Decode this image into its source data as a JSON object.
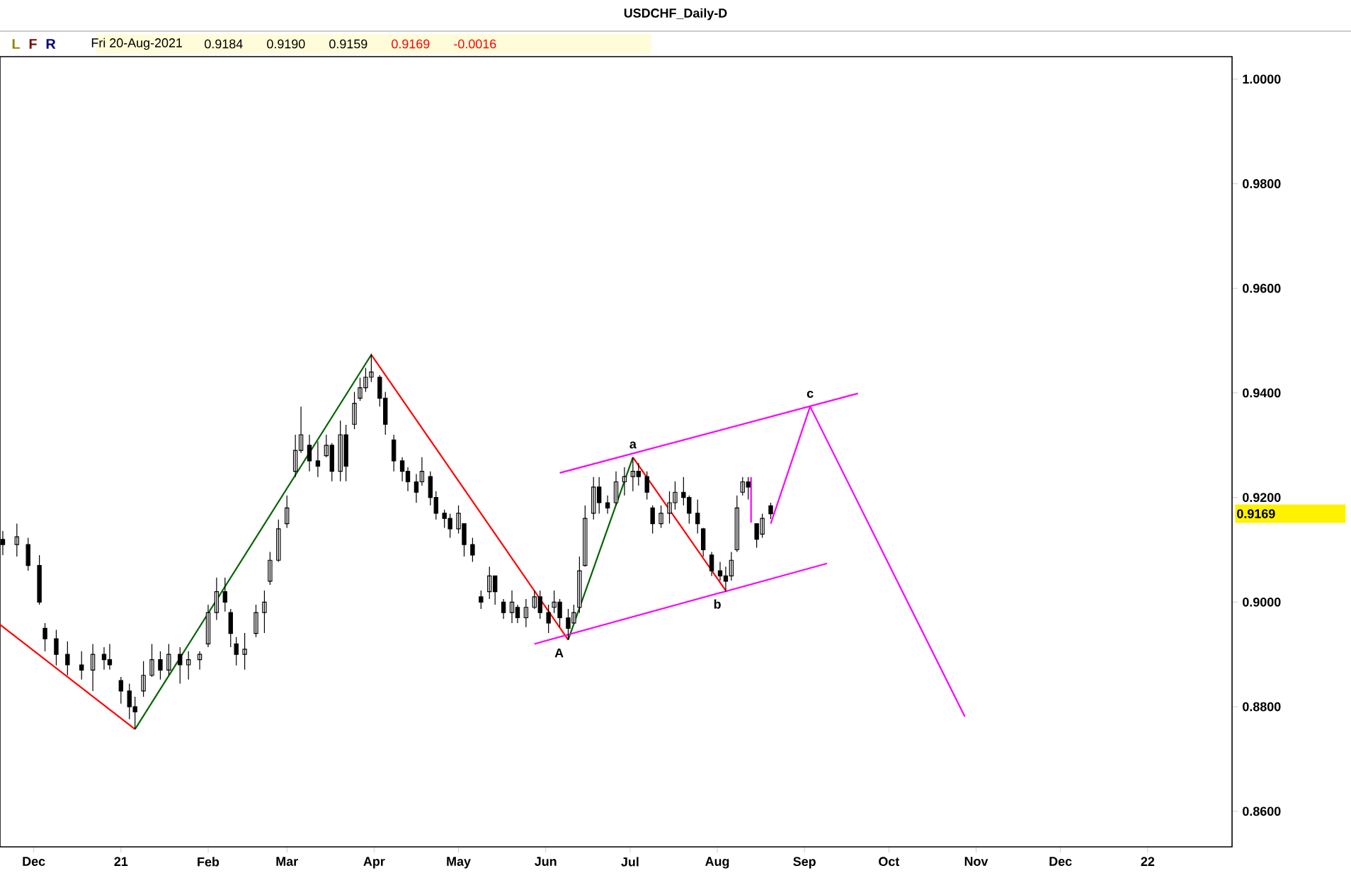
{
  "chart_data": {
    "type": "candlestick",
    "title": "USDCHF_Daily-D",
    "annotations": [
      "L",
      "F",
      "R",
      "Fri 20-Aug-2021",
      "0.9184",
      "0.9190",
      "0.9159",
      "0.9169",
      "-0.0016",
      "0.9169",
      {
        "text": "a",
        "x": "2021-07-02",
        "y": 0.9277
      },
      {
        "text": "b",
        "x": "2021-08-04",
        "y": 0.9022
      },
      {
        "text": "c",
        "x": "2021-09-03",
        "y": 0.9374
      },
      {
        "text": "A",
        "x": "2021-06-09",
        "y": 0.8928
      }
    ],
    "x": [
      "2020-11-20",
      "2020-11-25",
      "2020-11-29",
      "2020-12-03",
      "2020-12-05",
      "2020-12-09",
      "2020-12-13",
      "2020-12-18",
      "2020-12-22",
      "2020-12-26",
      "2020-12-28",
      "2021-01-01",
      "2021-01-04",
      "2021-01-06",
      "2021-01-09",
      "2021-01-12",
      "2021-01-15",
      "2021-01-18",
      "2021-01-22",
      "2021-01-25",
      "2021-01-29",
      "2021-02-01",
      "2021-02-04",
      "2021-02-07",
      "2021-02-09",
      "2021-02-11",
      "2021-02-14",
      "2021-02-18",
      "2021-02-21",
      "2021-02-23",
      "2021-02-26",
      "2021-03-01",
      "2021-03-04",
      "2021-03-06",
      "2021-03-09",
      "2021-03-12",
      "2021-03-15",
      "2021-03-17",
      "2021-03-20",
      "2021-03-22",
      "2021-03-25",
      "2021-03-27",
      "2021-03-29",
      "2021-03-31",
      "2021-04-03",
      "2021-04-05",
      "2021-04-08",
      "2021-04-11",
      "2021-04-13",
      "2021-04-16",
      "2021-04-18",
      "2021-04-21",
      "2021-04-23",
      "2021-04-26",
      "2021-04-28",
      "2021-05-01",
      "2021-05-03",
      "2021-05-06",
      "2021-05-09",
      "2021-05-12",
      "2021-05-14",
      "2021-05-17",
      "2021-05-20",
      "2021-05-22",
      "2021-05-25",
      "2021-05-28",
      "2021-05-30",
      "2021-06-02",
      "2021-06-04",
      "2021-06-06",
      "2021-06-09",
      "2021-06-11",
      "2021-06-13",
      "2021-06-15",
      "2021-06-18",
      "2021-06-20",
      "2021-06-23",
      "2021-06-26",
      "2021-06-29",
      "2021-07-02",
      "2021-07-04",
      "2021-07-07",
      "2021-07-09",
      "2021-07-12",
      "2021-07-15",
      "2021-07-17",
      "2021-07-20",
      "2021-07-22",
      "2021-07-25",
      "2021-07-27",
      "2021-07-30",
      "2021-08-02",
      "2021-08-04",
      "2021-08-06",
      "2021-08-08",
      "2021-08-10",
      "2021-08-12",
      "2021-08-15",
      "2021-08-17",
      "2021-08-20"
    ],
    "ohlc": [
      [
        0.912,
        0.9136,
        0.909,
        0.911
      ],
      [
        0.911,
        0.915,
        0.9087,
        0.9125
      ],
      [
        0.911,
        0.9123,
        0.906,
        0.907
      ],
      [
        0.907,
        0.909,
        0.8995,
        0.9
      ],
      [
        0.895,
        0.896,
        0.8906,
        0.893
      ],
      [
        0.893,
        0.8947,
        0.8879,
        0.89
      ],
      [
        0.89,
        0.8925,
        0.886,
        0.888
      ],
      [
        0.888,
        0.8906,
        0.8852,
        0.887
      ],
      [
        0.887,
        0.892,
        0.883,
        0.89
      ],
      [
        0.89,
        0.8914,
        0.8871,
        0.889
      ],
      [
        0.889,
        0.892,
        0.8871,
        0.888
      ],
      [
        0.885,
        0.8857,
        0.8806,
        0.883
      ],
      [
        0.883,
        0.8844,
        0.8776,
        0.88
      ],
      [
        0.88,
        0.8819,
        0.8757,
        0.879
      ],
      [
        0.883,
        0.8887,
        0.8819,
        0.886
      ],
      [
        0.886,
        0.892,
        0.8857,
        0.889
      ],
      [
        0.889,
        0.8906,
        0.8852,
        0.887
      ],
      [
        0.887,
        0.892,
        0.886,
        0.89
      ],
      [
        0.89,
        0.8914,
        0.8844,
        0.888
      ],
      [
        0.888,
        0.8906,
        0.8852,
        0.889
      ],
      [
        0.889,
        0.8906,
        0.8871,
        0.89
      ],
      [
        0.892,
        0.8995,
        0.8914,
        0.898
      ],
      [
        0.898,
        0.9047,
        0.8966,
        0.902
      ],
      [
        0.902,
        0.9047,
        0.8982,
        0.9
      ],
      [
        0.898,
        0.8987,
        0.8914,
        0.894
      ],
      [
        0.892,
        0.8933,
        0.8879,
        0.89
      ],
      [
        0.89,
        0.8941,
        0.8871,
        0.891
      ],
      [
        0.894,
        0.8995,
        0.8933,
        0.898
      ],
      [
        0.898,
        0.9022,
        0.8941,
        0.9
      ],
      [
        0.904,
        0.9096,
        0.9033,
        0.908
      ],
      [
        0.908,
        0.9158,
        0.9077,
        0.914
      ],
      [
        0.915,
        0.9204,
        0.9142,
        0.918
      ],
      [
        0.925,
        0.932,
        0.9239,
        0.929
      ],
      [
        0.929,
        0.9374,
        0.9285,
        0.932
      ],
      [
        0.93,
        0.932,
        0.925,
        0.927
      ],
      [
        0.927,
        0.9307,
        0.9239,
        0.926
      ],
      [
        0.928,
        0.932,
        0.9277,
        0.93
      ],
      [
        0.93,
        0.9304,
        0.9231,
        0.925
      ],
      [
        0.925,
        0.9347,
        0.9231,
        0.932
      ],
      [
        0.932,
        0.9339,
        0.9231,
        0.926
      ],
      [
        0.934,
        0.9402,
        0.9331,
        0.938
      ],
      [
        0.939,
        0.9429,
        0.9385,
        0.941
      ],
      [
        0.941,
        0.9448,
        0.9402,
        0.943
      ],
      [
        0.943,
        0.9475,
        0.9421,
        0.944
      ],
      [
        0.943,
        0.9434,
        0.9374,
        0.939
      ],
      [
        0.939,
        0.9402,
        0.932,
        0.934
      ],
      [
        0.931,
        0.932,
        0.925,
        0.927
      ],
      [
        0.927,
        0.9277,
        0.9231,
        0.925
      ],
      [
        0.925,
        0.9258,
        0.9212,
        0.923
      ],
      [
        0.923,
        0.9245,
        0.919,
        0.921
      ],
      [
        0.923,
        0.9277,
        0.9223,
        0.925
      ],
      [
        0.924,
        0.925,
        0.9185,
        0.92
      ],
      [
        0.92,
        0.9212,
        0.9158,
        0.917
      ],
      [
        0.917,
        0.9177,
        0.9142,
        0.916
      ],
      [
        0.916,
        0.9169,
        0.9123,
        0.914
      ],
      [
        0.914,
        0.9185,
        0.9131,
        0.917
      ],
      [
        0.915,
        0.915,
        0.9087,
        0.911
      ],
      [
        0.911,
        0.9123,
        0.9077,
        0.909
      ],
      [
        0.901,
        0.9022,
        0.8987,
        0.9
      ],
      [
        0.902,
        0.9068,
        0.9006,
        0.905
      ],
      [
        0.905,
        0.905,
        0.8995,
        0.902
      ],
      [
        0.9,
        0.9006,
        0.8968,
        0.898
      ],
      [
        0.898,
        0.9022,
        0.896,
        0.9
      ],
      [
        0.899,
        0.8995,
        0.896,
        0.897
      ],
      [
        0.897,
        0.9006,
        0.8952,
        0.899
      ],
      [
        0.899,
        0.9022,
        0.8987,
        0.901
      ],
      [
        0.901,
        0.9022,
        0.8968,
        0.898
      ],
      [
        0.898,
        0.8995,
        0.8941,
        0.896
      ],
      [
        0.899,
        0.9022,
        0.8979,
        0.9
      ],
      [
        0.9,
        0.9006,
        0.8952,
        0.897
      ],
      [
        0.897,
        0.8987,
        0.8928,
        0.895
      ],
      [
        0.896,
        0.8995,
        0.896,
        0.898
      ],
      [
        0.899,
        0.9087,
        0.8979,
        0.906
      ],
      [
        0.907,
        0.9185,
        0.9068,
        0.916
      ],
      [
        0.917,
        0.9239,
        0.9158,
        0.922
      ],
      [
        0.922,
        0.9239,
        0.9169,
        0.919
      ],
      [
        0.919,
        0.9204,
        0.9169,
        0.918
      ],
      [
        0.919,
        0.925,
        0.9185,
        0.923
      ],
      [
        0.923,
        0.9258,
        0.9204,
        0.924
      ],
      [
        0.924,
        0.9277,
        0.9212,
        0.925
      ],
      [
        0.925,
        0.9266,
        0.9223,
        0.924
      ],
      [
        0.924,
        0.925,
        0.9196,
        0.921
      ],
      [
        0.918,
        0.9185,
        0.9131,
        0.915
      ],
      [
        0.915,
        0.9185,
        0.9142,
        0.917
      ],
      [
        0.917,
        0.9212,
        0.915,
        0.919
      ],
      [
        0.919,
        0.9231,
        0.9177,
        0.921
      ],
      [
        0.921,
        0.9239,
        0.9185,
        0.92
      ],
      [
        0.92,
        0.9204,
        0.915,
        0.917
      ],
      [
        0.917,
        0.9196,
        0.9131,
        0.915
      ],
      [
        0.914,
        0.9142,
        0.9087,
        0.91
      ],
      [
        0.909,
        0.9096,
        0.905,
        0.906
      ],
      [
        0.906,
        0.9077,
        0.9041,
        0.905
      ],
      [
        0.905,
        0.9068,
        0.902,
        0.904
      ],
      [
        0.905,
        0.9096,
        0.9041,
        0.908
      ],
      [
        0.91,
        0.9204,
        0.9096,
        0.918
      ],
      [
        0.921,
        0.9239,
        0.9204,
        0.923
      ],
      [
        0.923,
        0.9239,
        0.9196,
        0.922
      ],
      [
        0.915,
        0.915,
        0.9104,
        0.912
      ],
      [
        0.913,
        0.9169,
        0.9123,
        0.916
      ],
      [
        0.9184,
        0.919,
        0.9159,
        0.9169
      ]
    ],
    "series": [
      {
        "type": "line",
        "color": "#ff0000",
        "x": [
          "2020-11-19",
          "2021-01-06"
        ],
        "values": [
          0.8957,
          0.8757
        ]
      },
      {
        "type": "line",
        "color": "#006400",
        "x": [
          "2021-01-06",
          "2021-03-31"
        ],
        "values": [
          0.8757,
          0.9473
        ]
      },
      {
        "type": "line",
        "color": "#ff0000",
        "x": [
          "2021-03-31",
          "2021-06-09"
        ],
        "values": [
          0.9473,
          0.8928
        ]
      },
      {
        "type": "line",
        "color": "#006400",
        "x": [
          "2021-06-09",
          "2021-07-02"
        ],
        "values": [
          0.8928,
          0.9277
        ]
      },
      {
        "type": "line",
        "color": "#ff0000",
        "x": [
          "2021-07-02",
          "2021-08-04"
        ],
        "values": [
          0.9277,
          0.9022
        ]
      },
      {
        "type": "line",
        "color": "#ff00ff",
        "x": [
          "2021-06-06",
          "2021-09-20"
        ],
        "values": [
          0.9247,
          0.9399
        ]
      },
      {
        "type": "line",
        "color": "#ff00ff",
        "x": [
          "2021-05-28",
          "2021-09-09"
        ],
        "values": [
          0.892,
          0.9074
        ]
      },
      {
        "type": "line",
        "color": "#ff00ff",
        "x": [
          "2021-08-20",
          "2021-09-03",
          "2021-10-28"
        ],
        "values": [
          0.915,
          0.9374,
          0.8781
        ]
      },
      {
        "type": "line",
        "color": "#ff00ff",
        "x": [
          "2021-08-13",
          "2021-08-13"
        ],
        "values": [
          0.9239,
          0.9152
        ]
      }
    ],
    "xlim": [
      "2020-11-19",
      "2022-01-31"
    ],
    "xticks": [
      {
        "value": "2020-12-01",
        "label": "Dec"
      },
      {
        "value": "2021-01-01",
        "label": "21"
      },
      {
        "value": "2021-02-01",
        "label": "Feb"
      },
      {
        "value": "2021-03-01",
        "label": "Mar"
      },
      {
        "value": "2021-04-01",
        "label": "Apr"
      },
      {
        "value": "2021-05-01",
        "label": "May"
      },
      {
        "value": "2021-06-01",
        "label": "Jun"
      },
      {
        "value": "2021-07-01",
        "label": "Jul"
      },
      {
        "value": "2021-08-01",
        "label": "Aug"
      },
      {
        "value": "2021-09-01",
        "label": "Sep"
      },
      {
        "value": "2021-10-01",
        "label": "Oct"
      },
      {
        "value": "2021-11-01",
        "label": "Nov"
      },
      {
        "value": "2021-12-01",
        "label": "Dec"
      },
      {
        "value": "2022-01-01",
        "label": "22"
      }
    ],
    "ylim": [
      0.8532,
      1.0043
    ],
    "yticks": [
      {
        "value": 0.86,
        "label": "0.8600"
      },
      {
        "value": 0.88,
        "label": "0.8800"
      },
      {
        "value": 0.9,
        "label": "0.9000"
      },
      {
        "value": 0.92,
        "label": "0.9200"
      },
      {
        "value": 0.94,
        "label": "0.9400"
      },
      {
        "value": 0.96,
        "label": "0.9600"
      },
      {
        "value": 0.98,
        "label": "0.9800"
      },
      {
        "value": 1.0,
        "label": "1.0000"
      }
    ]
  }
}
